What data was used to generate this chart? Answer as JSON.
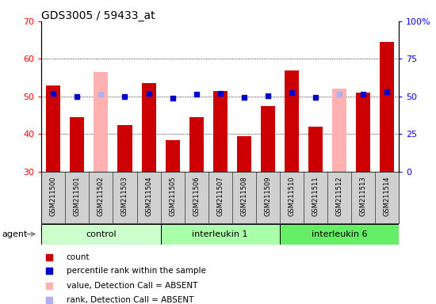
{
  "title": "GDS3005 / 59433_at",
  "samples": [
    "GSM211500",
    "GSM211501",
    "GSM211502",
    "GSM211503",
    "GSM211504",
    "GSM211505",
    "GSM211506",
    "GSM211507",
    "GSM211508",
    "GSM211509",
    "GSM211510",
    "GSM211511",
    "GSM211512",
    "GSM211513",
    "GSM211514"
  ],
  "bar_values": [
    53.0,
    44.5,
    null,
    42.5,
    53.5,
    38.5,
    44.5,
    51.5,
    39.5,
    47.5,
    57.0,
    42.0,
    null,
    51.0,
    64.5
  ],
  "bar_absent": [
    null,
    null,
    56.5,
    null,
    null,
    null,
    null,
    null,
    null,
    null,
    null,
    null,
    52.0,
    null,
    null
  ],
  "rank_values": [
    52.0,
    50.0,
    null,
    50.0,
    52.0,
    49.0,
    51.5,
    52.0,
    49.5,
    50.5,
    52.5,
    49.5,
    null,
    51.5,
    53.0
  ],
  "rank_absent": [
    null,
    null,
    51.5,
    null,
    null,
    null,
    null,
    null,
    null,
    null,
    null,
    null,
    51.5,
    null,
    null
  ],
  "bar_color": "#cc0000",
  "bar_absent_color": "#ffb0b0",
  "rank_color": "#0000cc",
  "rank_absent_color": "#b0b0ee",
  "ylim_left": [
    30,
    70
  ],
  "ylim_right": [
    0,
    100
  ],
  "yticks_left": [
    30,
    40,
    50,
    60,
    70
  ],
  "ytick_labels_right": [
    "0",
    "25",
    "50",
    "75",
    "100%"
  ],
  "groups": [
    {
      "label": "control",
      "start": 0,
      "end": 4,
      "color": "#ccffcc"
    },
    {
      "label": "interleukin 1",
      "start": 5,
      "end": 9,
      "color": "#aaffaa"
    },
    {
      "label": "interleukin 6",
      "start": 10,
      "end": 14,
      "color": "#66ee66"
    }
  ],
  "agent_label": "agent",
  "legend_items": [
    {
      "color": "#cc0000",
      "label": "count"
    },
    {
      "color": "#0000cc",
      "label": "percentile rank within the sample"
    },
    {
      "color": "#ffb0b0",
      "label": "value, Detection Call = ABSENT"
    },
    {
      "color": "#b0b0ee",
      "label": "rank, Detection Call = ABSENT"
    }
  ]
}
